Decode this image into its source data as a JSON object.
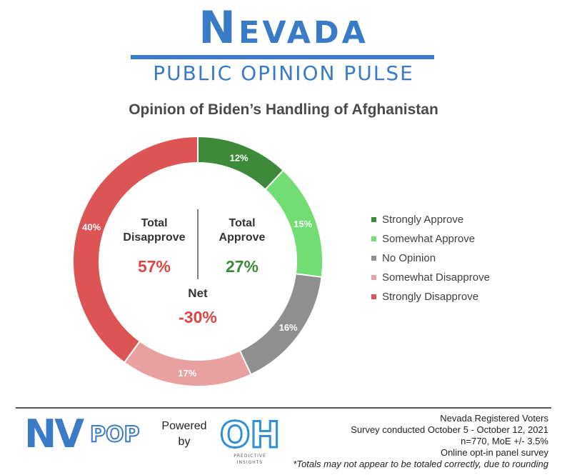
{
  "header": {
    "brand": "Nevada",
    "subtitle": "PUBLIC OPINION PULSE"
  },
  "chart_data": {
    "type": "pie",
    "title": "Opinion of Biden’s Handling of Afghanistan",
    "style": "donut",
    "legend_position": "right",
    "categories": [
      "Strongly Approve",
      "Somewhat Approve",
      "No Opinion",
      "Somewhat Disapprove",
      "Strongly Disapprove"
    ],
    "values": [
      12,
      15,
      16,
      17,
      40
    ],
    "value_labels": [
      "12%",
      "15%",
      "16%",
      "17%",
      "40%"
    ],
    "colors": [
      "#3d8a3a",
      "#72dd72",
      "#8f8f8f",
      "#e8a0a0",
      "#dd5454"
    ],
    "center": {
      "disapprove_label_line1": "Total",
      "disapprove_label_line2": "Disapprove",
      "disapprove_value": "57%",
      "approve_label_line1": "Total",
      "approve_label_line2": "Approve",
      "approve_value": "27%",
      "net_label": "Net",
      "net_value": "-30%",
      "disapprove_color": "#dd4444",
      "approve_color": "#3d8a3a"
    }
  },
  "footer": {
    "logo_nv": "NV",
    "logo_pop": "POP",
    "powered_line1": "Powered",
    "powered_line2": "by",
    "oh_text": "OH",
    "oh_sub": "PREDICTIVE",
    "oh_sub2": "INSIGHTS",
    "survey_line1": "Nevada Registered Voters",
    "survey_line2": "Survey conducted October 5 - October 12, 2021",
    "survey_line3": "n=770, MoE +/- 3.5%",
    "survey_line4": "Online opt-in panel survey",
    "survey_note": "*Totals may not appear to be totaled correctly, due to rounding"
  },
  "brand_color": "#3a7bc8"
}
